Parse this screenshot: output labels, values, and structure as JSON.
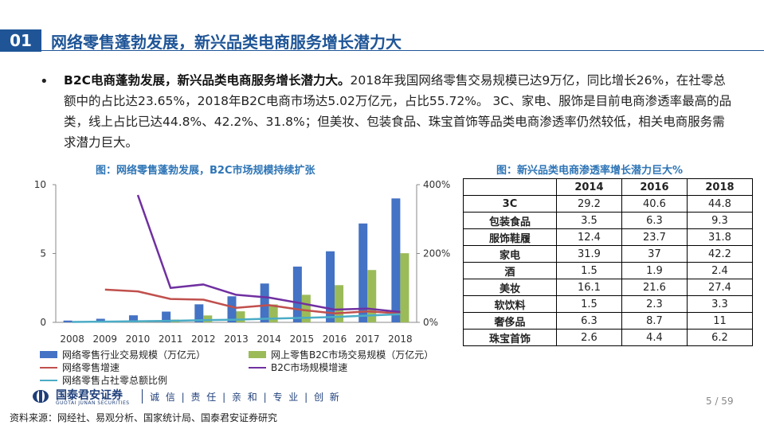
{
  "header": {
    "badge": "01",
    "title": "网络零售蓬勃发展，新兴品类电商服务增长潜力大"
  },
  "bullet": {
    "marker": "•",
    "bold": "B2C电商蓬勃发展，新兴品类电商服务增长潜力大。",
    "text": "2018年我国网络零售交易规模已达9万亿，同比增长26%，在社零总额中的占比达23.65%，2018年B2C电商市场达5.02万亿元，占比55.72%。 3C、家电、服饰是目前电商渗透率最高的品类，线上占比已达44.8%、42.2%、31.8%；但美妆、包装食品、珠宝首饰等品类电商渗透率仍然较低，相关电商服务需求潜力巨大。"
  },
  "chart_caption": "图：网络零售蓬勃发展，B2C市场规模持续扩张",
  "table_caption": "图：新兴品类电商渗透率增长潜力巨大%",
  "chart_data": {
    "type": "bar",
    "categories": [
      "2008",
      "2009",
      "2010",
      "2011",
      "2012",
      "2013",
      "2014",
      "2015",
      "2016",
      "2017",
      "2018"
    ],
    "ylim_left": [
      0,
      10
    ],
    "left_ticks": [
      "0",
      "5",
      "10"
    ],
    "ylim_right": [
      0,
      400
    ],
    "right_ticks": [
      "0%",
      "200%",
      "400%"
    ],
    "series": [
      {
        "name": "网络零售行业交易规模（万亿元）",
        "kind": "bar",
        "axis": "left",
        "color": "#4472c4",
        "values": [
          0.13,
          0.26,
          0.51,
          0.78,
          1.31,
          1.89,
          2.82,
          4.05,
          5.16,
          7.18,
          9.0
        ]
      },
      {
        "name": "网上零售B2C市场交易规模（万亿元）",
        "kind": "bar",
        "axis": "left",
        "color": "#9bbb59",
        "values": [
          0.01,
          0.02,
          0.05,
          0.2,
          0.5,
          0.8,
          1.3,
          2.0,
          2.7,
          3.8,
          5.02
        ]
      },
      {
        "name": "网络零售增速",
        "kind": "line",
        "axis": "right",
        "color": "#c0504d",
        "values": [
          null,
          95,
          90,
          68,
          66,
          42,
          50,
          36,
          26,
          32,
          26
        ]
      },
      {
        "name": "B2C市场规模增速",
        "kind": "line",
        "axis": "right",
        "color": "#7030a0",
        "values": [
          null,
          null,
          370,
          100,
          110,
          80,
          72,
          55,
          37,
          40,
          30
        ]
      },
      {
        "name": "网络零售占社零总额比例",
        "kind": "line",
        "axis": "right",
        "color": "#4bacc6",
        "values": [
          1.1,
          2.0,
          3.3,
          4.3,
          6.3,
          7.8,
          10.6,
          12.9,
          15.5,
          19.6,
          23.65
        ]
      }
    ]
  },
  "table": {
    "headers": [
      "",
      "2014",
      "2016",
      "2018"
    ],
    "rows": [
      [
        "3C",
        "29.2",
        "40.6",
        "44.8"
      ],
      [
        "包装食品",
        "3.5",
        "6.3",
        "9.3"
      ],
      [
        "服饰鞋履",
        "12.4",
        "23.7",
        "31.8"
      ],
      [
        "家电",
        "31.9",
        "37",
        "42.2"
      ],
      [
        "酒",
        "1.5",
        "1.9",
        "2.4"
      ],
      [
        "美妆",
        "16.1",
        "21.6",
        "27.4"
      ],
      [
        "软饮料",
        "1.5",
        "2.3",
        "3.3"
      ],
      [
        "奢侈品",
        "6.3",
        "8.7",
        "11"
      ],
      [
        "珠宝首饰",
        "2.6",
        "4.4",
        "6.2"
      ]
    ]
  },
  "footer": {
    "company": "国泰君安证券",
    "company_en": "GUOTAI JUNAN SECURITIES",
    "slogan": "诚 信 | 责 任 | 亲 和 | 专 业 | 创 新",
    "page": "5 / 59",
    "source": "资料来源：网经社、易观分析、国家统计局、国泰君安证券研究"
  },
  "colors": {
    "brand": "#1f5597",
    "caption": "#2e75b6"
  }
}
